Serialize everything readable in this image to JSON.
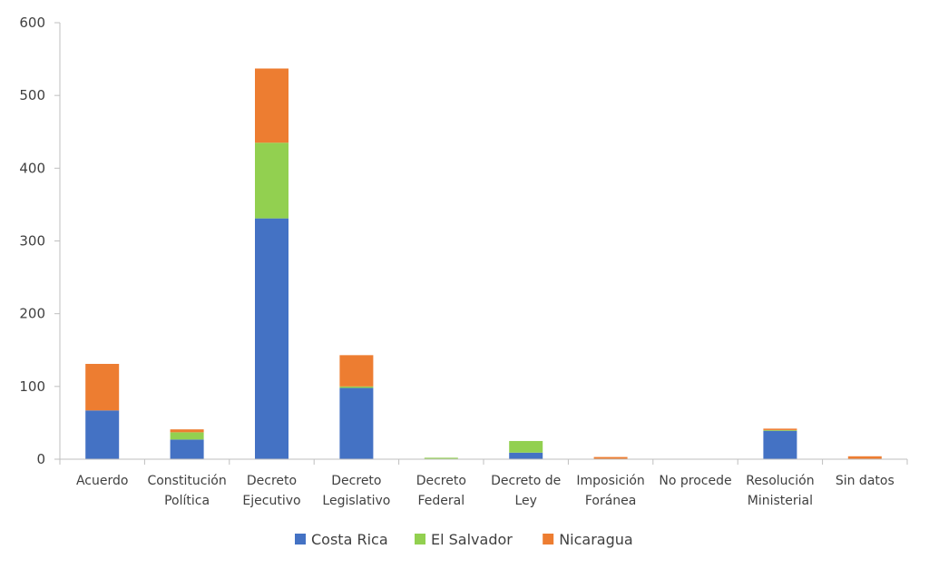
{
  "chart_data": {
    "type": "bar",
    "stacked": true,
    "categories": [
      [
        "Acuerdo"
      ],
      [
        "Constitución",
        "Política"
      ],
      [
        "Decreto",
        "Ejecutivo"
      ],
      [
        "Decreto",
        "Legislativo"
      ],
      [
        "Decreto",
        "Federal"
      ],
      [
        "Decreto de",
        "Ley"
      ],
      [
        "Imposición",
        "Foránea"
      ],
      [
        "No procede"
      ],
      [
        "Resolución",
        "Ministerial"
      ],
      [
        "Sin datos"
      ]
    ],
    "series": [
      {
        "name": "Costa Rica",
        "color": "#4472C4",
        "values": [
          67,
          27,
          331,
          98,
          0,
          9,
          0,
          0,
          39,
          0
        ]
      },
      {
        "name": "El Salvador",
        "color": "#92D050",
        "values": [
          0,
          10,
          104,
          2,
          2,
          16,
          0,
          0,
          1,
          0
        ]
      },
      {
        "name": "Nicaragua",
        "color": "#ED7D31",
        "values": [
          64,
          4,
          102,
          43,
          0,
          0,
          3,
          0,
          2,
          4
        ]
      }
    ],
    "ylim": [
      0,
      600
    ],
    "yticks": [
      0,
      100,
      200,
      300,
      400,
      500,
      600
    ],
    "grid": false,
    "legend_position": "bottom"
  }
}
